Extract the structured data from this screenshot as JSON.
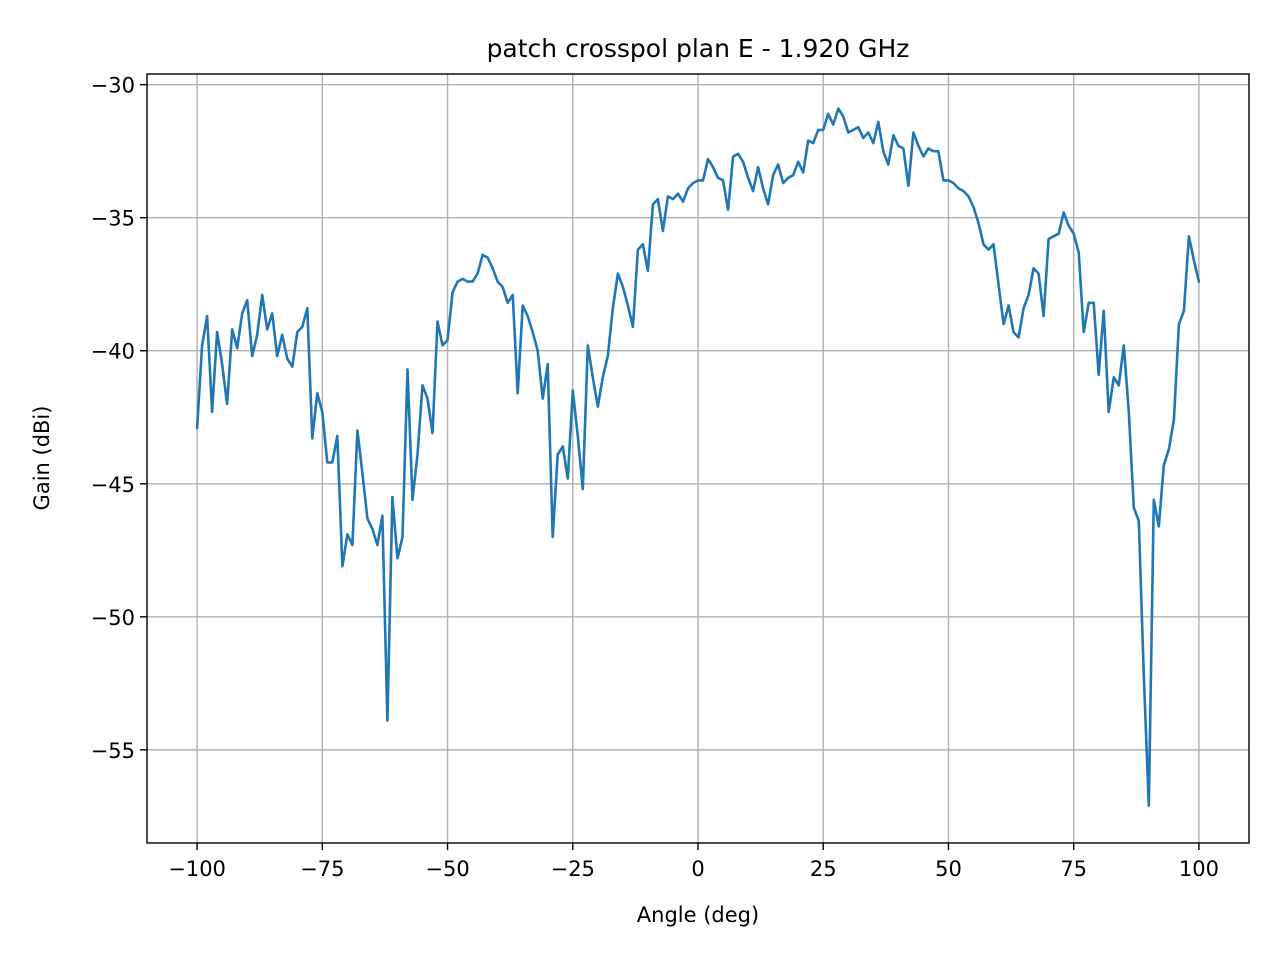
{
  "chart_data": {
    "type": "line",
    "title": "patch crosspol plan E - 1.920 GHz",
    "xlabel": "Angle (deg)",
    "ylabel": "Gain (dBi)",
    "xlim": [
      -110,
      110
    ],
    "ylim": [
      -58.5,
      -29.6
    ],
    "xticks": [
      -100,
      -75,
      -50,
      -25,
      0,
      25,
      50,
      75,
      100
    ],
    "xtick_labels": [
      "−100",
      "−75",
      "−50",
      "−25",
      "0",
      "25",
      "50",
      "75",
      "100"
    ],
    "yticks": [
      -55,
      -50,
      -45,
      -40,
      -35,
      -30
    ],
    "ytick_labels": [
      "−55",
      "−50",
      "−45",
      "−40",
      "−35",
      "−30"
    ],
    "grid": true,
    "series": [
      {
        "color": "#1f77b4",
        "x": [
          -100,
          -99,
          -98,
          -97,
          -96,
          -95,
          -94,
          -93,
          -92,
          -91,
          -90,
          -89,
          -88,
          -87,
          -86,
          -85,
          -84,
          -83,
          -82,
          -81,
          -80,
          -79,
          -78,
          -77,
          -76,
          -75,
          -74,
          -73,
          -72,
          -71,
          -70,
          -69,
          -68,
          -67,
          -66,
          -65,
          -64,
          -63,
          -62,
          -61,
          -60,
          -59,
          -58,
          -57,
          -56,
          -55,
          -54,
          -53,
          -52,
          -51,
          -50,
          -49,
          -48,
          -47,
          -46,
          -45,
          -44,
          -43,
          -42,
          -41,
          -40,
          -39,
          -38,
          -37,
          -36,
          -35,
          -34,
          -33,
          -32,
          -31,
          -30,
          -29,
          -28,
          -27,
          -26,
          -25,
          -24,
          -23,
          -22,
          -21,
          -20,
          -19,
          -18,
          -17,
          -16,
          -15,
          -14,
          -13,
          -12,
          -11,
          -10,
          -9,
          -8,
          -7,
          -6,
          -5,
          -4,
          -3,
          -2,
          -1,
          0,
          1,
          2,
          3,
          4,
          5,
          6,
          7,
          8,
          9,
          10,
          11,
          12,
          13,
          14,
          15,
          16,
          17,
          18,
          19,
          20,
          21,
          22,
          23,
          24,
          25,
          26,
          27,
          28,
          29,
          30,
          31,
          32,
          33,
          34,
          35,
          36,
          37,
          38,
          39,
          40,
          41,
          42,
          43,
          44,
          45,
          46,
          47,
          48,
          49,
          50,
          51,
          52,
          53,
          54,
          55,
          56,
          57,
          58,
          59,
          60,
          61,
          62,
          63,
          64,
          65,
          66,
          67,
          68,
          69,
          70,
          71,
          72,
          73,
          74,
          75,
          76,
          77,
          78,
          79,
          80,
          81,
          82,
          83,
          84,
          85,
          86,
          87,
          88,
          89,
          90,
          91,
          92,
          93,
          94,
          95,
          96,
          97,
          98,
          99,
          100
        ],
        "y": [
          -42.9,
          -39.8,
          -38.7,
          -42.3,
          -39.3,
          -40.5,
          -42.0,
          -39.2,
          -39.9,
          -38.6,
          -38.1,
          -40.2,
          -39.4,
          -37.9,
          -39.2,
          -38.6,
          -40.2,
          -39.4,
          -40.3,
          -40.6,
          -39.3,
          -39.1,
          -38.4,
          -43.3,
          -41.6,
          -42.3,
          -44.2,
          -44.2,
          -43.2,
          -48.1,
          -46.9,
          -47.3,
          -43.0,
          -44.6,
          -46.3,
          -46.7,
          -47.3,
          -46.2,
          -53.9,
          -45.5,
          -47.8,
          -47.0,
          -40.7,
          -45.6,
          -43.9,
          -41.3,
          -41.8,
          -43.1,
          -38.9,
          -39.8,
          -39.6,
          -37.8,
          -37.4,
          -37.3,
          -37.4,
          -37.4,
          -37.1,
          -36.4,
          -36.5,
          -36.9,
          -37.4,
          -37.6,
          -38.2,
          -37.9,
          -41.6,
          -38.3,
          -38.7,
          -39.3,
          -40.0,
          -41.8,
          -40.5,
          -47.0,
          -43.9,
          -43.6,
          -44.8,
          -41.5,
          -43.2,
          -45.2,
          -39.8,
          -41.0,
          -42.1,
          -41.0,
          -40.2,
          -38.4,
          -37.1,
          -37.6,
          -38.3,
          -39.1,
          -36.2,
          -36.0,
          -37.0,
          -34.5,
          -34.3,
          -35.5,
          -34.2,
          -34.3,
          -34.1,
          -34.4,
          -33.9,
          -33.7,
          -33.6,
          -33.6,
          -32.8,
          -33.1,
          -33.5,
          -33.6,
          -34.7,
          -32.7,
          -32.6,
          -32.9,
          -33.5,
          -34.0,
          -33.1,
          -33.9,
          -34.5,
          -33.4,
          -33.0,
          -33.7,
          -33.5,
          -33.4,
          -32.9,
          -33.3,
          -32.1,
          -32.2,
          -31.7,
          -31.7,
          -31.1,
          -31.5,
          -30.9,
          -31.2,
          -31.8,
          -31.7,
          -31.6,
          -32.0,
          -31.8,
          -32.2,
          -31.4,
          -32.5,
          -33.0,
          -31.9,
          -32.3,
          -32.4,
          -33.8,
          -31.8,
          -32.3,
          -32.7,
          -32.4,
          -32.5,
          -32.5,
          -33.6,
          -33.6,
          -33.7,
          -33.9,
          -34.0,
          -34.2,
          -34.6,
          -35.2,
          -36.0,
          -36.2,
          -36.0,
          -37.5,
          -39.0,
          -38.3,
          -39.3,
          -39.5,
          -38.4,
          -37.9,
          -36.9,
          -37.1,
          -38.7,
          -35.8,
          -35.7,
          -35.6,
          -34.8,
          -35.3,
          -35.6,
          -36.3,
          -39.3,
          -38.2,
          -38.2,
          -40.9,
          -38.5,
          -42.3,
          -41.0,
          -41.3,
          -39.8,
          -42.3,
          -45.9,
          -46.4,
          -52.2,
          -57.1,
          -45.6,
          -46.6,
          -44.3,
          -43.7,
          -42.6,
          -39.0,
          -38.5,
          -35.7,
          -36.6,
          -37.4
        ]
      }
    ]
  }
}
